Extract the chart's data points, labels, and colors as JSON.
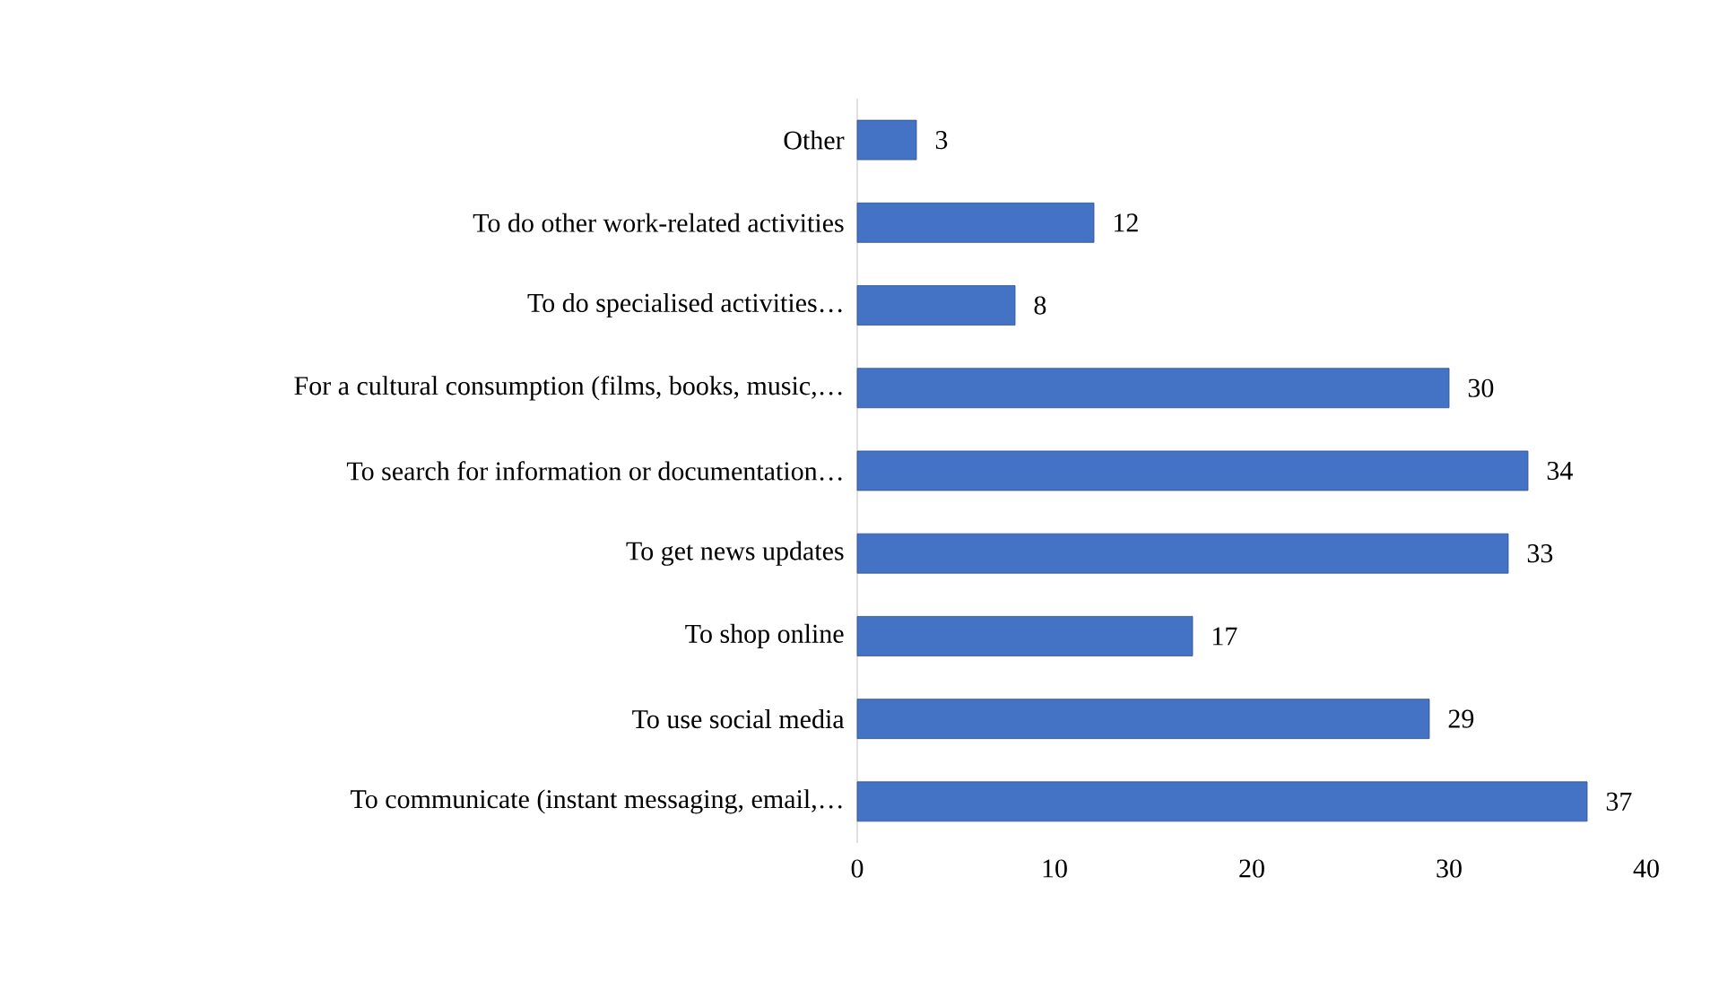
{
  "chart_data": {
    "type": "bar",
    "orientation": "horizontal",
    "categories": [
      "Other",
      "To do other work-related activities",
      "To do specialised activities…",
      "For a cultural consumption (films, books, music,…",
      "To search for information or documentation…",
      "To get news updates",
      "To shop online",
      "To use social media",
      "To communicate (instant messaging, email,…"
    ],
    "values": [
      3,
      12,
      8,
      30,
      34,
      33,
      17,
      29,
      37
    ],
    "color": "#4472c4",
    "data_labels": true,
    "xlim": [
      0,
      40
    ],
    "xticks": [
      0,
      10,
      20,
      30,
      40
    ]
  }
}
